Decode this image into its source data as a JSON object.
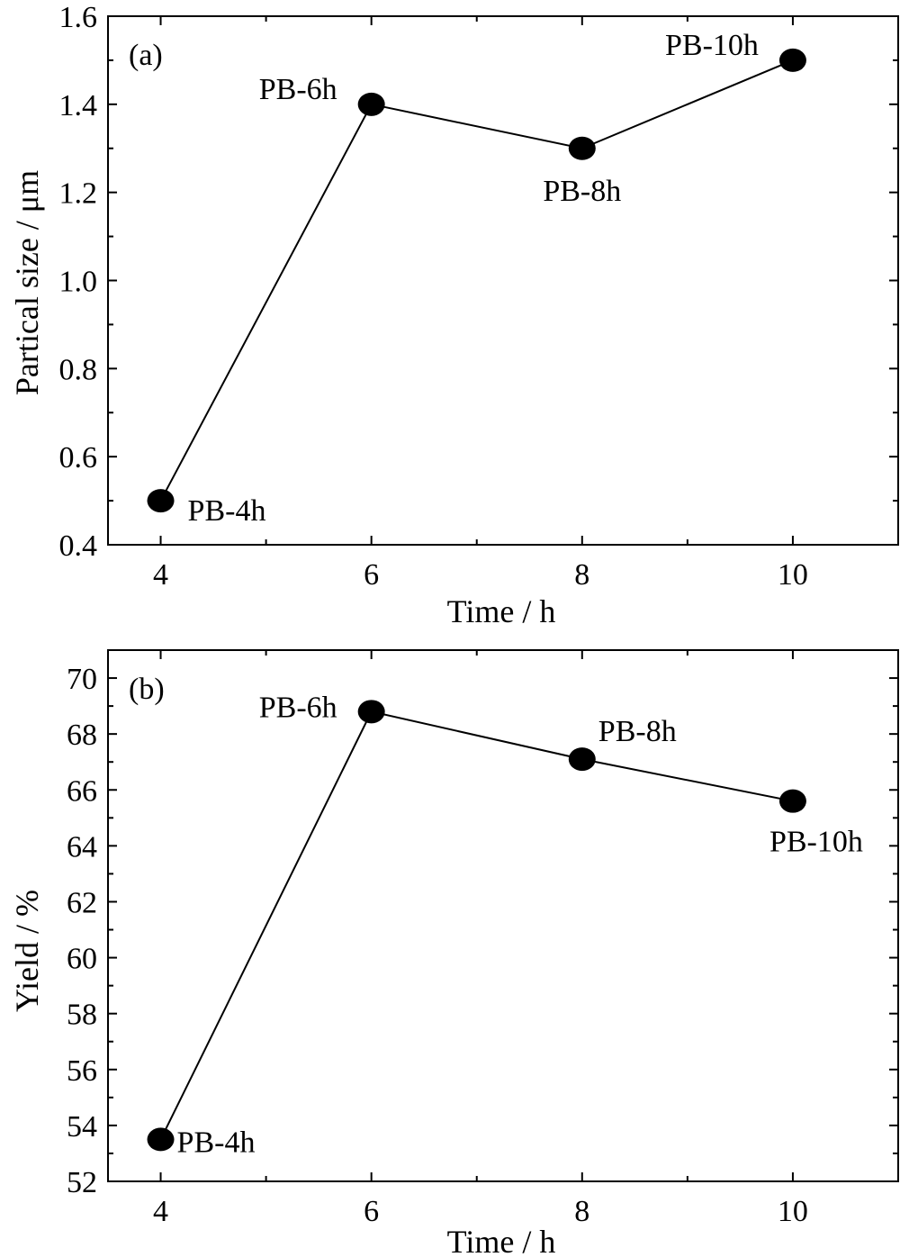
{
  "chart_data": [
    {
      "type": "line",
      "panel_label": "(a)",
      "xlabel": "Time / h",
      "ylabel": "Partical size / μm",
      "xlim": [
        3.5,
        11
      ],
      "ylim": [
        0.4,
        1.6
      ],
      "xticks": [
        4,
        6,
        8,
        10
      ],
      "xtick_labels": [
        "4",
        "6",
        "8",
        "10"
      ],
      "yticks": [
        0.4,
        0.6,
        0.8,
        1.0,
        1.2,
        1.4,
        1.6
      ],
      "ytick_labels": [
        "0.4",
        "0.6",
        "0.8",
        "1.0",
        "1.2",
        "1.4",
        "1.6"
      ],
      "x_minor_step": 1,
      "y_minor_step": 0.1,
      "grid": false,
      "series": [
        {
          "x": [
            4,
            6,
            8,
            10
          ],
          "y": [
            0.5,
            1.4,
            1.3,
            1.5
          ]
        }
      ],
      "annotations": [
        "PB-4h",
        "PB-6h",
        "PB-8h",
        "PB-10h"
      ]
    },
    {
      "type": "line",
      "panel_label": "(b)",
      "xlabel": "Time / h",
      "ylabel": "Yield / %",
      "xlim": [
        3.5,
        11
      ],
      "ylim": [
        52,
        71
      ],
      "xticks": [
        4,
        6,
        8,
        10
      ],
      "xtick_labels": [
        "4",
        "6",
        "8",
        "10"
      ],
      "yticks": [
        52,
        54,
        56,
        58,
        60,
        62,
        64,
        66,
        68,
        70
      ],
      "ytick_labels": [
        "52",
        "54",
        "56",
        "58",
        "60",
        "62",
        "64",
        "66",
        "68",
        "70"
      ],
      "x_minor_step": 1,
      "y_minor_step": 1,
      "grid": false,
      "series": [
        {
          "x": [
            4,
            6,
            8,
            10
          ],
          "y": [
            53.5,
            68.8,
            67.1,
            65.6
          ]
        }
      ],
      "annotations": [
        "PB-4h",
        "PB-6h",
        "PB-8h",
        "PB-10h"
      ]
    }
  ]
}
